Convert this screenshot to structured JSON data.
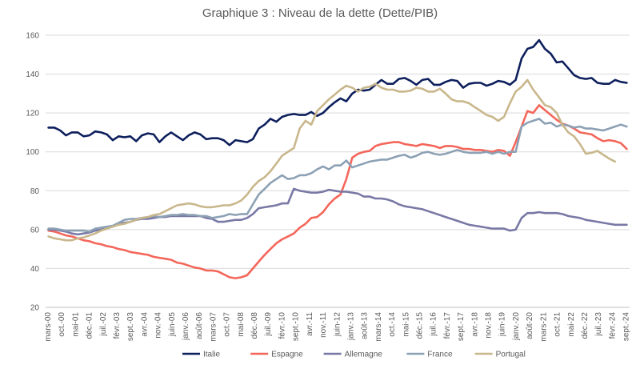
{
  "chart_data": {
    "type": "line",
    "title": "Graphique 3 : Niveau de la dette (Dette/PIB)",
    "xlabel": "",
    "ylabel": "",
    "ylim": [
      20,
      160
    ],
    "yticks": [
      20,
      40,
      60,
      80,
      100,
      120,
      140,
      160
    ],
    "grid": "horizontal",
    "legend_position": "bottom",
    "x_tick_labels": [
      "mars-00",
      "oct.-00",
      "mai-01",
      "déc.-01",
      "juil.-02",
      "févr.-03",
      "sept.-03",
      "avr.-04",
      "nov.-04",
      "juin-05",
      "janv.-06",
      "août-06",
      "mars-07",
      "oct.-07",
      "mai-08",
      "déc.-08",
      "juil.-09",
      "févr.-10",
      "sept.-10",
      "avr.-11",
      "nov.-11",
      "juin-12",
      "janv.-13",
      "août-13",
      "mars-14",
      "oct.-14",
      "mai-15",
      "déc.-15",
      "juil.-16",
      "févr.-17",
      "sept.-17",
      "avr.-18",
      "nov.-18",
      "juin-19",
      "janv.-20",
      "août-20",
      "mars-21",
      "oct.-21",
      "mai-22",
      "déc.-22",
      "juil.-23",
      "févr.-24",
      "sept.-24"
    ],
    "x_start": "2000Q1",
    "x_end": "2024Q4",
    "frequency": "quarterly",
    "series": [
      {
        "name": "Italie",
        "color": "#0d1f5c",
        "values": [
          112.5,
          112.5,
          111,
          108.5,
          110,
          110,
          108,
          108.5,
          110.5,
          110,
          109,
          106,
          108,
          107.5,
          108,
          105.5,
          108.5,
          109.5,
          109,
          105,
          108,
          110,
          108,
          106,
          108.5,
          110,
          109,
          106.5,
          107,
          107,
          106,
          103.5,
          106,
          105.5,
          105,
          106.5,
          112,
          114,
          117,
          115.5,
          118,
          119,
          119.5,
          119,
          119,
          120.5,
          118.5,
          120,
          123,
          125.5,
          127.5,
          126,
          130,
          132,
          131.5,
          132,
          134.5,
          137,
          135,
          135,
          137.5,
          138,
          136.5,
          134.5,
          137,
          137.5,
          134.5,
          134.5,
          136,
          137,
          136.5,
          133,
          135,
          135.5,
          135.5,
          134,
          135,
          136.5,
          136,
          134.5,
          137,
          148,
          153,
          154,
          157.5,
          153,
          150.5,
          146,
          146.5,
          143,
          139.5,
          138,
          137.5,
          138,
          135.5,
          135,
          135,
          137,
          136,
          135.5
        ]
      },
      {
        "name": "Espagne",
        "color": "#f4665a",
        "values": [
          59.5,
          59,
          58,
          57,
          56.5,
          55.5,
          54.5,
          54,
          53,
          52.5,
          51.5,
          51,
          50,
          49.5,
          48.5,
          48,
          47.5,
          47,
          46,
          45.5,
          45,
          44.5,
          43,
          42.5,
          41.5,
          40.5,
          40,
          39,
          39,
          38.5,
          37,
          35.5,
          35,
          35.5,
          36.5,
          40,
          43.5,
          47,
          50,
          53,
          55,
          56.5,
          58,
          61,
          63,
          66,
          66.5,
          69,
          73,
          76,
          78,
          86,
          97,
          99,
          100,
          100.5,
          103,
          104,
          104.5,
          105,
          105,
          104,
          103.5,
          103,
          104,
          103.5,
          103,
          102,
          103,
          103,
          102.5,
          101.5,
          101.5,
          101,
          101,
          100.5,
          100,
          101,
          100.5,
          98,
          105,
          113,
          121,
          120,
          124,
          121.5,
          119,
          116.5,
          114.5,
          113.5,
          112,
          110,
          109.5,
          109,
          107,
          105.5,
          106,
          105.5,
          104.5,
          101.5
        ]
      },
      {
        "name": "Allemagne",
        "color": "#7979a6",
        "values": [
          60,
          60,
          59.5,
          59,
          58,
          57.5,
          58,
          58.5,
          59.5,
          60,
          61,
          61.5,
          63,
          63.5,
          64,
          65,
          65.5,
          65.5,
          66,
          66.5,
          66.5,
          67,
          67,
          67,
          67,
          67,
          67,
          66,
          65.5,
          64,
          64,
          64.5,
          65,
          65,
          66,
          68,
          71,
          71.5,
          72,
          72.5,
          73.5,
          73.5,
          81,
          80,
          79.5,
          79,
          79,
          79.5,
          80.5,
          80,
          79.5,
          79.5,
          79,
          78.5,
          77,
          77,
          76,
          76,
          75.5,
          74.5,
          73,
          72,
          71.5,
          71,
          70.5,
          69.5,
          68.5,
          67.5,
          66.5,
          65.5,
          64.5,
          63.5,
          62.5,
          62,
          61.5,
          61,
          60.5,
          60.5,
          60.5,
          59.5,
          60,
          66,
          68.5,
          68.5,
          69,
          68.5,
          68.5,
          68.5,
          68,
          67,
          66.5,
          66,
          65,
          64.5,
          64,
          63.5,
          63,
          62.5,
          62.5,
          62.5
        ]
      },
      {
        "name": "France",
        "color": "#8da1b5",
        "values": [
          60.5,
          60.5,
          60,
          59.5,
          59.5,
          59.5,
          59.5,
          59,
          60.5,
          61,
          61.5,
          62,
          63.5,
          65,
          65.5,
          65.5,
          66,
          66.5,
          67,
          66.5,
          67,
          67.5,
          67.5,
          68,
          67.5,
          67.5,
          67,
          67,
          66,
          66.5,
          67,
          68,
          67.5,
          68,
          68,
          73,
          78,
          81,
          84,
          86,
          88,
          86,
          86.5,
          88,
          88,
          89,
          91,
          92.5,
          91,
          93,
          93,
          95.5,
          92,
          93,
          94,
          95,
          95.5,
          96,
          96,
          97,
          98,
          98.5,
          97,
          98,
          99.5,
          100,
          99,
          98.5,
          99,
          100,
          101,
          100,
          99.5,
          99.5,
          99.5,
          100,
          99,
          100,
          99,
          100,
          100,
          113,
          115,
          116,
          117,
          114.5,
          115,
          113,
          114,
          113.5,
          112.5,
          113,
          112,
          112,
          111.5,
          111,
          112,
          113,
          114,
          113
        ]
      },
      {
        "name": "Portugal",
        "color": "#c9b78c",
        "values": [
          56.5,
          55.5,
          55,
          54.5,
          54.5,
          55.5,
          56,
          57,
          58,
          59.5,
          60.5,
          61.5,
          62.5,
          63,
          64,
          65,
          66,
          66.5,
          67.5,
          68,
          69.5,
          71,
          72.5,
          73,
          73.5,
          73,
          72,
          71.5,
          71.5,
          72,
          72.5,
          72.5,
          73.5,
          75,
          78,
          82,
          85,
          87,
          90,
          94,
          98,
          100,
          102,
          112,
          116,
          114,
          121,
          124,
          127,
          129.5,
          132,
          134,
          133,
          131,
          133,
          133.5,
          135,
          133,
          132,
          132,
          131,
          131,
          131.5,
          133,
          132.5,
          131,
          131,
          132.5,
          130,
          127,
          126,
          126,
          125,
          123,
          121,
          119,
          118,
          116,
          118,
          125,
          131,
          133.5,
          137,
          132,
          128,
          124,
          123,
          120,
          114,
          110,
          108,
          104,
          99,
          99.5,
          100.5,
          98.5,
          96.5,
          95
        ]
      }
    ]
  }
}
